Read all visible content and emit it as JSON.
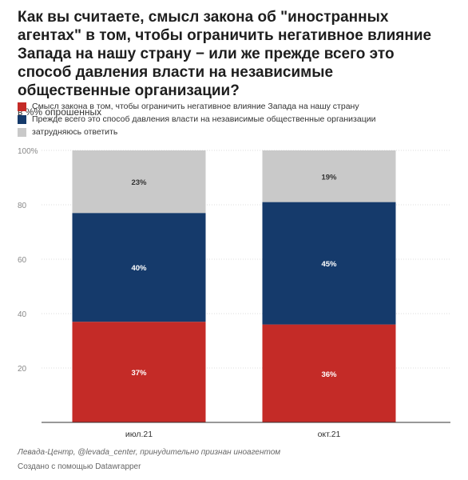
{
  "title": "Как вы считаете, смысл закона об \"иностранных агентах\" в том, чтобы ограничить негативное влияние Запада на нашу страну − или же прежде всего это способ давления власти на независимые общественные организации?",
  "subtitle": "в %% опрошенных",
  "legend": [
    {
      "label": "Смысл закона в том, чтобы ограничить негативное влияние Запада на нашу страну",
      "color": "#c42b27"
    },
    {
      "label": "Прежде всего это способ давления власти на независимые общественные организации",
      "color": "#153a6b"
    },
    {
      "label": "затрудняюсь ответить",
      "color": "#c9c9c9"
    }
  ],
  "chart_data": {
    "type": "bar",
    "stacked": true,
    "categories": [
      "июл.21",
      "окт.21"
    ],
    "series": [
      {
        "name": "Смысл закона в том, чтобы ограничить негативное влияние Запада на нашу страну",
        "values": [
          37,
          36
        ],
        "labels": [
          "37%",
          "36%"
        ],
        "color": "#c42b27"
      },
      {
        "name": "Прежде всего это способ давления власти на независимые общественные организации",
        "values": [
          40,
          45
        ],
        "labels": [
          "40%",
          "45%"
        ],
        "color": "#153a6b"
      },
      {
        "name": "затрудняюсь ответить",
        "values": [
          23,
          19
        ],
        "labels": [
          "23%",
          "19%"
        ],
        "color": "#c9c9c9"
      }
    ],
    "ylim": [
      0,
      100
    ],
    "yticks": [
      20,
      40,
      60,
      80
    ],
    "ytick_labels": [
      "20",
      "40",
      "60",
      "80"
    ],
    "top_tick_label": "100%",
    "grid": true,
    "label_colors": [
      "#ffffff",
      "#ffffff",
      "#333333"
    ]
  },
  "footer": {
    "source": "Левада-Центр, @levada_center, принудительно признан иноагентом",
    "credit": "Создано с помощью Datawrapper"
  }
}
